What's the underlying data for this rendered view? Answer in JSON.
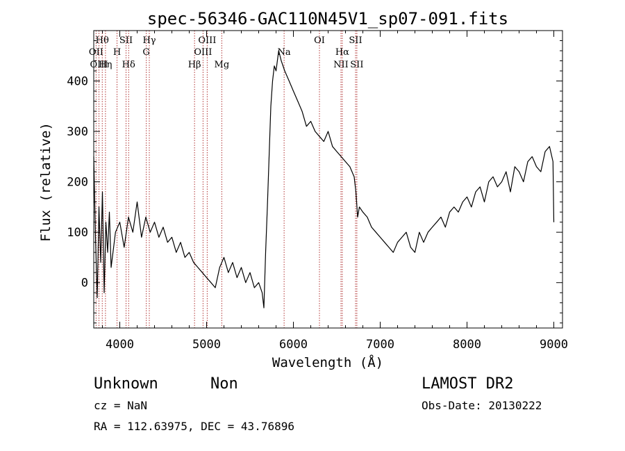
{
  "chart_data": {
    "type": "line",
    "title": "spec-56346-GAC110N45V1_sp07-091.fits",
    "xlabel": "Wavelength (Å)",
    "ylabel": "Flux (relative)",
    "xlim": [
      3700,
      9100
    ],
    "ylim": [
      -90,
      500
    ],
    "xticks": [
      4000,
      5000,
      6000,
      7000,
      8000,
      9000
    ],
    "yticks": [
      0,
      100,
      200,
      300,
      400
    ],
    "line_color": "#000000",
    "marker_color": "#b03030",
    "grid": false,
    "legend": "none",
    "series": [
      {
        "x": [
          3700,
          3720,
          3740,
          3760,
          3780,
          3800,
          3820,
          3840,
          3860,
          3880,
          3900,
          3950,
          4000,
          4050,
          4100,
          4150,
          4200,
          4250,
          4300,
          4350,
          4400,
          4450,
          4500,
          4550,
          4600,
          4650,
          4700,
          4750,
          4800,
          4850,
          4900,
          4950,
          5000,
          5050,
          5100,
          5150,
          5200,
          5250,
          5300,
          5350,
          5400,
          5450,
          5500,
          5550,
          5600,
          5640,
          5660,
          5680,
          5700,
          5720,
          5740,
          5760,
          5780,
          5800,
          5830,
          5860,
          5900,
          5950,
          6000,
          6050,
          6100,
          6150,
          6200,
          6250,
          6300,
          6350,
          6400,
          6450,
          6500,
          6550,
          6600,
          6650,
          6700,
          6720,
          6740,
          6760,
          6800,
          6850,
          6900,
          6950,
          7000,
          7050,
          7100,
          7150,
          7200,
          7250,
          7300,
          7350,
          7400,
          7450,
          7500,
          7550,
          7600,
          7650,
          7700,
          7750,
          7800,
          7850,
          7900,
          7950,
          8000,
          8050,
          8100,
          8150,
          8200,
          8250,
          8300,
          8350,
          8400,
          8450,
          8500,
          8550,
          8600,
          8650,
          8700,
          8750,
          8800,
          8850,
          8900,
          8950,
          8990,
          9000
        ],
        "y": [
          250,
          90,
          -30,
          150,
          40,
          180,
          -20,
          120,
          60,
          140,
          30,
          100,
          120,
          70,
          130,
          100,
          160,
          90,
          130,
          100,
          120,
          90,
          110,
          80,
          90,
          60,
          80,
          50,
          60,
          40,
          30,
          20,
          10,
          0,
          -10,
          30,
          50,
          20,
          40,
          10,
          30,
          0,
          20,
          -10,
          0,
          -20,
          -50,
          60,
          150,
          250,
          350,
          400,
          430,
          420,
          460,
          440,
          420,
          400,
          380,
          360,
          340,
          310,
          320,
          300,
          290,
          280,
          300,
          270,
          260,
          250,
          240,
          230,
          210,
          180,
          130,
          150,
          140,
          130,
          110,
          100,
          90,
          80,
          70,
          60,
          80,
          90,
          100,
          70,
          60,
          100,
          80,
          100,
          110,
          120,
          130,
          110,
          140,
          150,
          140,
          160,
          170,
          150,
          180,
          190,
          160,
          200,
          210,
          190,
          200,
          220,
          180,
          230,
          220,
          200,
          240,
          250,
          230,
          220,
          260,
          270,
          240,
          120
        ],
        "line_width": 1.2
      }
    ],
    "annotations": [
      {
        "label": "Hθ",
        "x": 3798,
        "row": 1
      },
      {
        "label": "OII",
        "x": 3727,
        "row": 2
      },
      {
        "label": "OIII",
        "x": 3760,
        "row": 3
      },
      {
        "label": "Hη",
        "x": 3835,
        "row": 3
      },
      {
        "label": "SII",
        "x": 4072,
        "row": 1
      },
      {
        "label": "H",
        "x": 3968,
        "row": 2
      },
      {
        "label": "Hδ",
        "x": 4102,
        "row": 3
      },
      {
        "label": "Hγ",
        "x": 4340,
        "row": 1
      },
      {
        "label": "G",
        "x": 4305,
        "row": 2
      },
      {
        "label": "OIII",
        "x": 5007,
        "row": 1
      },
      {
        "label": "OIII",
        "x": 4959,
        "row": 2
      },
      {
        "label": "Hβ",
        "x": 4861,
        "row": 3
      },
      {
        "label": "Mg",
        "x": 5175,
        "row": 3
      },
      {
        "label": "Na",
        "x": 5893,
        "row": 2
      },
      {
        "label": "OI",
        "x": 6300,
        "row": 1
      },
      {
        "label": "Hα",
        "x": 6563,
        "row": 2
      },
      {
        "label": "NII",
        "x": 6548,
        "row": 3
      },
      {
        "label": "SII",
        "x": 6716,
        "row": 1
      },
      {
        "label": "SII",
        "x": 6731,
        "row": 3
      }
    ]
  },
  "info": {
    "class_label": "Unknown",
    "subclass_label": "Non",
    "survey": "LAMOST DR2",
    "cz": "cz = NaN",
    "obs_date": "Obs-Date: 20130222",
    "coords": "RA = 112.63975, DEC =  43.76896"
  }
}
